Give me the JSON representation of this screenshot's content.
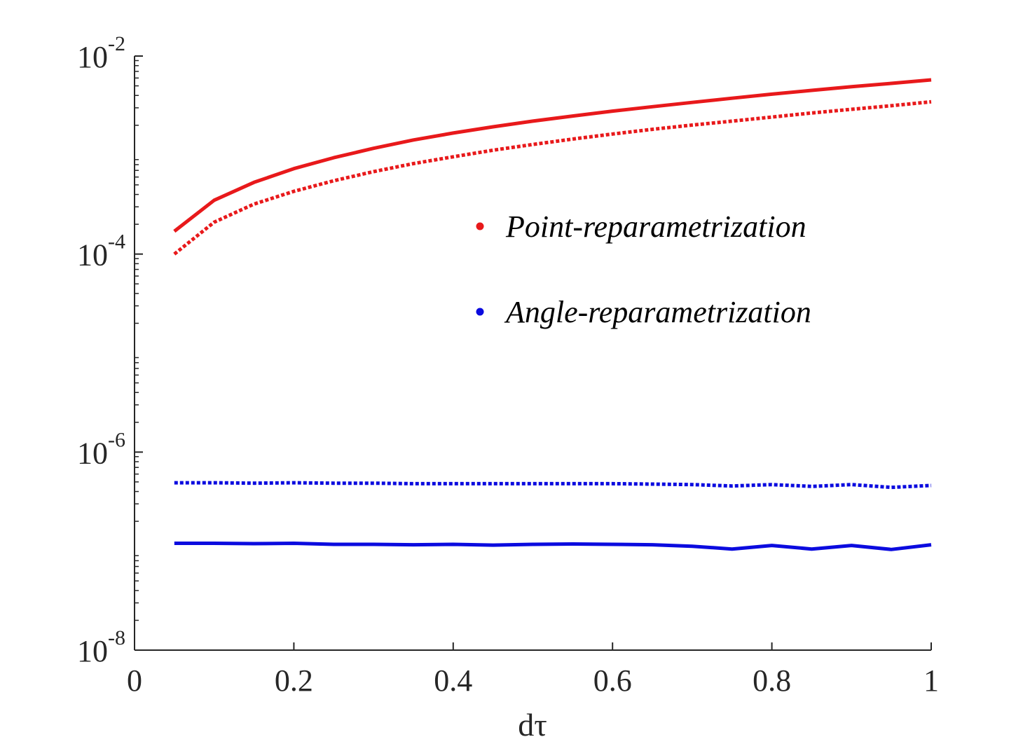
{
  "chart_data": {
    "type": "line",
    "xlabel": "dτ",
    "ylabel": "",
    "xlim": [
      0,
      1
    ],
    "ylim": [
      1e-08,
      0.01
    ],
    "yscale": "log",
    "grid": false,
    "legend_position": "center-right",
    "x_ticks": [
      "0",
      "0.2",
      "0.4",
      "0.6",
      "0.8",
      "1"
    ],
    "x_tick_values": [
      0,
      0.2,
      0.4,
      0.6,
      0.8,
      1
    ],
    "y_ticks": [
      {
        "base": "10",
        "exp": "-8",
        "value": 1e-08
      },
      {
        "base": "10",
        "exp": "-6",
        "value": 1e-06
      },
      {
        "base": "10",
        "exp": "-4",
        "value": 0.0001
      },
      {
        "base": "10",
        "exp": "-2",
        "value": 0.01
      }
    ],
    "x": [
      0.05,
      0.1,
      0.15,
      0.2,
      0.25,
      0.3,
      0.35,
      0.4,
      0.45,
      0.5,
      0.55,
      0.6,
      0.65,
      0.7,
      0.75,
      0.8,
      0.85,
      0.9,
      0.95,
      1.0
    ],
    "series": [
      {
        "legend": "Point-reparametrization",
        "color": "#e8191b",
        "style": "solid",
        "values": [
          0.00017,
          0.00035,
          0.00053,
          0.00073,
          0.00094,
          0.00117,
          0.00142,
          0.00167,
          0.00193,
          0.0022,
          0.00248,
          0.00278,
          0.00308,
          0.0034,
          0.00375,
          0.00412,
          0.0045,
          0.0049,
          0.0053,
          0.00575
        ]
      },
      {
        "color": "#e8191b",
        "style": "dotted",
        "values": [
          0.0001,
          0.00021,
          0.00032,
          0.00043,
          0.00055,
          0.00068,
          0.00082,
          0.00096,
          0.00112,
          0.00128,
          0.00145,
          0.00163,
          0.00182,
          0.00201,
          0.0022,
          0.00242,
          0.00266,
          0.0029,
          0.00315,
          0.00345
        ]
      },
      {
        "legend": "Angle-reparametrization",
        "color": "#0b0bdf",
        "style": "solid",
        "values": [
          1.2e-07,
          1.2e-07,
          1.19e-07,
          1.2e-07,
          1.17e-07,
          1.17e-07,
          1.16e-07,
          1.17e-07,
          1.15e-07,
          1.17e-07,
          1.18e-07,
          1.17e-07,
          1.16e-07,
          1.12e-07,
          1.05e-07,
          1.14e-07,
          1.05e-07,
          1.14e-07,
          1.04e-07,
          1.16e-07
        ]
      },
      {
        "color": "#0b0bdf",
        "style": "dotted",
        "values": [
          4.9e-07,
          4.9e-07,
          4.85e-07,
          4.9e-07,
          4.85e-07,
          4.85e-07,
          4.8e-07,
          4.8e-07,
          4.8e-07,
          4.8e-07,
          4.8e-07,
          4.8e-07,
          4.75e-07,
          4.7e-07,
          4.55e-07,
          4.7e-07,
          4.5e-07,
          4.7e-07,
          4.4e-07,
          4.6e-07
        ]
      }
    ]
  }
}
